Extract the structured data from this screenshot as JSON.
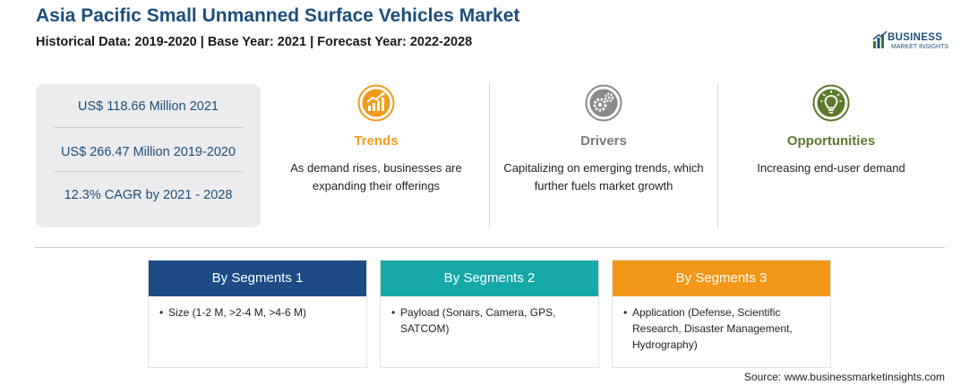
{
  "header": {
    "title": "Asia Pacific Small Unmanned Surface Vehicles Market",
    "subtitle": "Historical Data: 2019-2020 | Base Year: 2021 | Forecast Year: 2022-2028"
  },
  "logo": {
    "line1": "BUSINESS",
    "line2": "MARKET INSIGHTS"
  },
  "stats": [
    "US$ 118.66 Million 2021",
    "US$ 266.47 Million 2019-2020",
    "12.3% CAGR by 2021 - 2028"
  ],
  "highlights": [
    {
      "icon": "trend-chart-icon",
      "heading": "Trends",
      "text": "As demand rises, businesses are expanding their offerings",
      "color": "#f29a1d"
    },
    {
      "icon": "gears-icon",
      "heading": "Drivers",
      "text": "Capitalizing on emerging trends, which further fuels market growth",
      "color": "#7a7a7a"
    },
    {
      "icon": "lightbulb-icon",
      "heading": "Opportunities",
      "text": "Increasing end-user demand",
      "color": "#5b7a2c"
    }
  ],
  "segments": [
    {
      "title": "By Segments 1",
      "bullet": "Size (1-2 M, >2-4 M, >4-6 M)",
      "color": "#1c4b86"
    },
    {
      "title": "By Segments 2",
      "bullet": "Payload (Sonars, Camera, GPS, SATCOM)",
      "color": "#17a8a8"
    },
    {
      "title": "By Segments 3",
      "bullet": "Application (Defense, Scientific Research, Disaster Management, Hydrography)",
      "color": "#f39719"
    }
  ],
  "source": "Source: www.businessmarketinsights.com"
}
